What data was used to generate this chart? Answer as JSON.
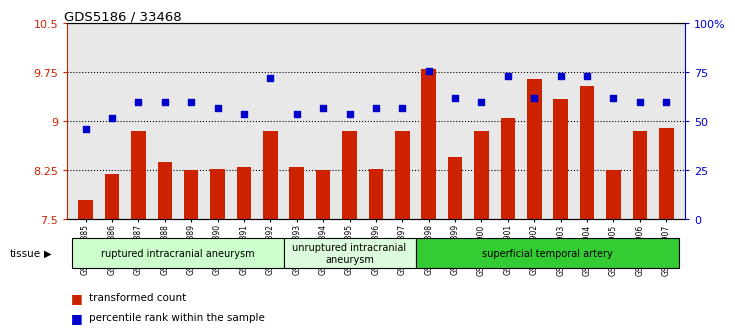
{
  "title": "GDS5186 / 33468",
  "samples": [
    "GSM1306885",
    "GSM1306886",
    "GSM1306887",
    "GSM1306888",
    "GSM1306889",
    "GSM1306890",
    "GSM1306891",
    "GSM1306892",
    "GSM1306893",
    "GSM1306894",
    "GSM1306895",
    "GSM1306896",
    "GSM1306897",
    "GSM1306898",
    "GSM1306899",
    "GSM1306900",
    "GSM1306901",
    "GSM1306902",
    "GSM1306903",
    "GSM1306904",
    "GSM1306905",
    "GSM1306906",
    "GSM1306907"
  ],
  "bar_values": [
    7.8,
    8.2,
    8.85,
    8.38,
    8.25,
    8.28,
    8.3,
    8.85,
    8.3,
    8.25,
    8.85,
    8.28,
    8.85,
    9.8,
    8.45,
    8.85,
    9.05,
    9.65,
    9.35,
    9.55,
    8.25,
    8.85,
    8.9
  ],
  "percentile_values": [
    46,
    52,
    60,
    60,
    60,
    57,
    54,
    72,
    54,
    57,
    54,
    57,
    57,
    76,
    62,
    60,
    73,
    62,
    73,
    73,
    62,
    60,
    60
  ],
  "bar_color": "#cc2200",
  "point_color": "#0000cc",
  "ylim_left": [
    7.5,
    10.5
  ],
  "ylim_right": [
    0,
    100
  ],
  "yticks_left": [
    7.5,
    8.25,
    9.0,
    9.75,
    10.5
  ],
  "yticks_right": [
    0,
    25,
    50,
    75,
    100
  ],
  "ytick_labels_left": [
    "7.5",
    "8.25",
    "9",
    "9.75",
    "10.5"
  ],
  "ytick_labels_right": [
    "0",
    "25",
    "50",
    "75",
    "100%"
  ],
  "grid_values": [
    8.25,
    9.0,
    9.75
  ],
  "groups": [
    {
      "label": "ruptured intracranial aneurysm",
      "start": 0,
      "end": 8,
      "color": "#ccffcc"
    },
    {
      "label": "unruptured intracranial\naneurysm",
      "start": 8,
      "end": 13,
      "color": "#ddfcdd"
    },
    {
      "label": "superficial temporal artery",
      "start": 13,
      "end": 23,
      "color": "#33cc33"
    }
  ],
  "tissue_label": "tissue",
  "legend_bar_label": "transformed count",
  "legend_point_label": "percentile rank within the sample",
  "bg_color": "#e8e8e8",
  "fig_width": 7.14,
  "fig_height": 3.63
}
